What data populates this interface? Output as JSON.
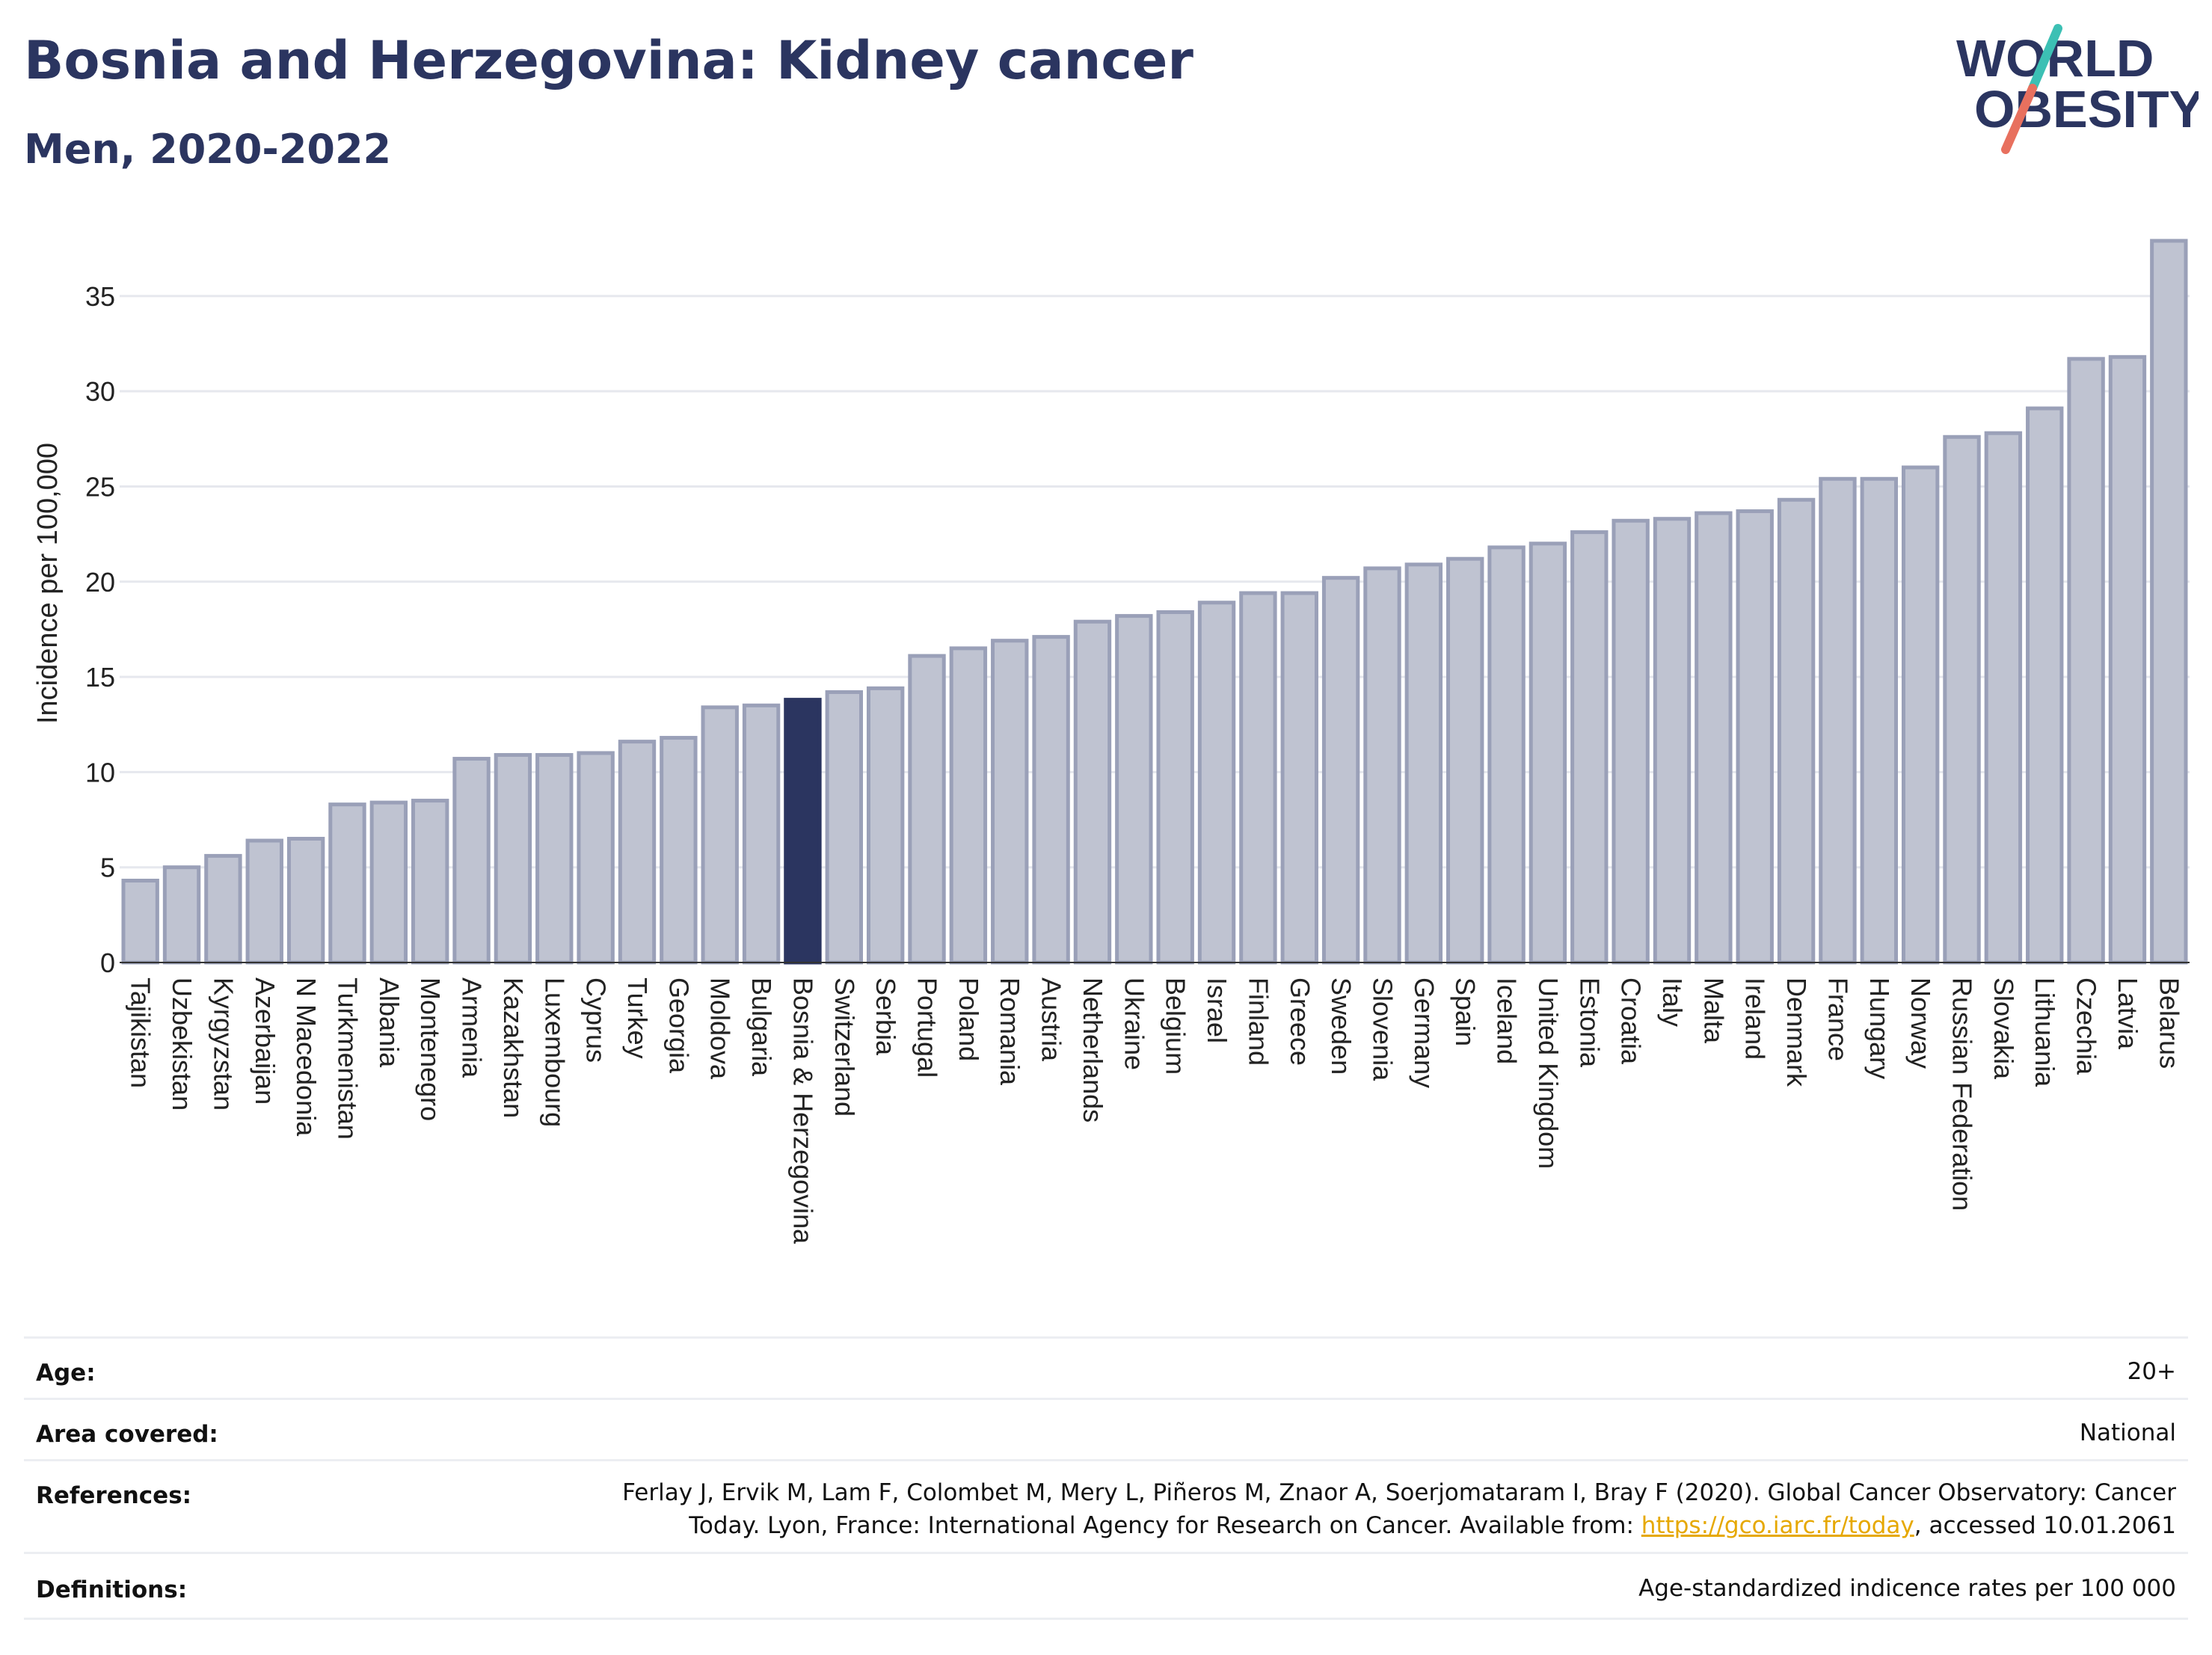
{
  "header": {
    "title": "Bosnia and Herzegovina: Kidney cancer",
    "subtitle": "Men, 2020-2022"
  },
  "logo": {
    "line1": "WORLD",
    "line2": "OBESITY",
    "color_text": "#2b3560",
    "color_slash_top": "#3cc0b4",
    "color_slash_bottom": "#e8705e"
  },
  "chart_data": {
    "type": "bar",
    "ylabel": "Incidence per 100,000",
    "ylim": [
      0,
      38
    ],
    "yticks": [
      0,
      5,
      10,
      15,
      20,
      25,
      30,
      35
    ],
    "grid": true,
    "highlight": "Bosnia & Herzegovina",
    "colors": {
      "bar": "#bfc3d1",
      "bar_edge": "#9aa0b8",
      "highlight": "#2b3560"
    },
    "categories": [
      "Tajikistan",
      "Uzbekistan",
      "Kyrgyzstan",
      "Azerbaijan",
      "N Macedonia",
      "Turkmenistan",
      "Albania",
      "Montenegro",
      "Armenia",
      "Kazakhstan",
      "Luxembourg",
      "Cyprus",
      "Turkey",
      "Georgia",
      "Moldova",
      "Bulgaria",
      "Bosnia & Herzegovina",
      "Switzerland",
      "Serbia",
      "Portugal",
      "Poland",
      "Romania",
      "Austria",
      "Netherlands",
      "Ukraine",
      "Belgium",
      "Israel",
      "Finland",
      "Greece",
      "Sweden",
      "Slovenia",
      "Germany",
      "Spain",
      "Iceland",
      "United Kingdom",
      "Estonia",
      "Croatia",
      "Italy",
      "Malta",
      "Ireland",
      "Denmark",
      "France",
      "Hungary",
      "Norway",
      "Russian Federation",
      "Slovakia",
      "Lithuania",
      "Czechia",
      "Latvia",
      "Belarus"
    ],
    "values": [
      4.3,
      5.0,
      5.6,
      6.4,
      6.5,
      8.3,
      8.4,
      8.5,
      10.7,
      10.9,
      10.9,
      11.0,
      11.6,
      11.8,
      13.4,
      13.5,
      13.8,
      14.2,
      14.4,
      16.1,
      16.5,
      16.9,
      17.1,
      17.9,
      18.2,
      18.4,
      18.9,
      19.4,
      19.4,
      20.2,
      20.7,
      20.9,
      21.2,
      21.8,
      22.0,
      22.6,
      23.2,
      23.3,
      23.6,
      23.7,
      24.3,
      25.4,
      25.4,
      26.0,
      27.6,
      27.8,
      29.1,
      31.7,
      31.8,
      37.9
    ]
  },
  "info": {
    "age_label": "Age:",
    "age_value": "20+",
    "area_label": "Area covered:",
    "area_value": "National",
    "references_label": "References:",
    "references_line1": "Ferlay J, Ervik M, Lam F, Colombet M, Mery L, Piñeros M, Znaor A, Soerjomataram I, Bray F (2020). Global Cancer Observatory: Cancer",
    "references_line2_pre": "Today. Lyon, France: International Agency for Research on Cancer. Available from: ",
    "references_link": "https://gco.iarc.fr/today",
    "references_line2_post": ", accessed 10.01.2061",
    "definitions_label": "Definitions:",
    "definitions_value": "Age-standardized indicence rates per 100 000"
  }
}
